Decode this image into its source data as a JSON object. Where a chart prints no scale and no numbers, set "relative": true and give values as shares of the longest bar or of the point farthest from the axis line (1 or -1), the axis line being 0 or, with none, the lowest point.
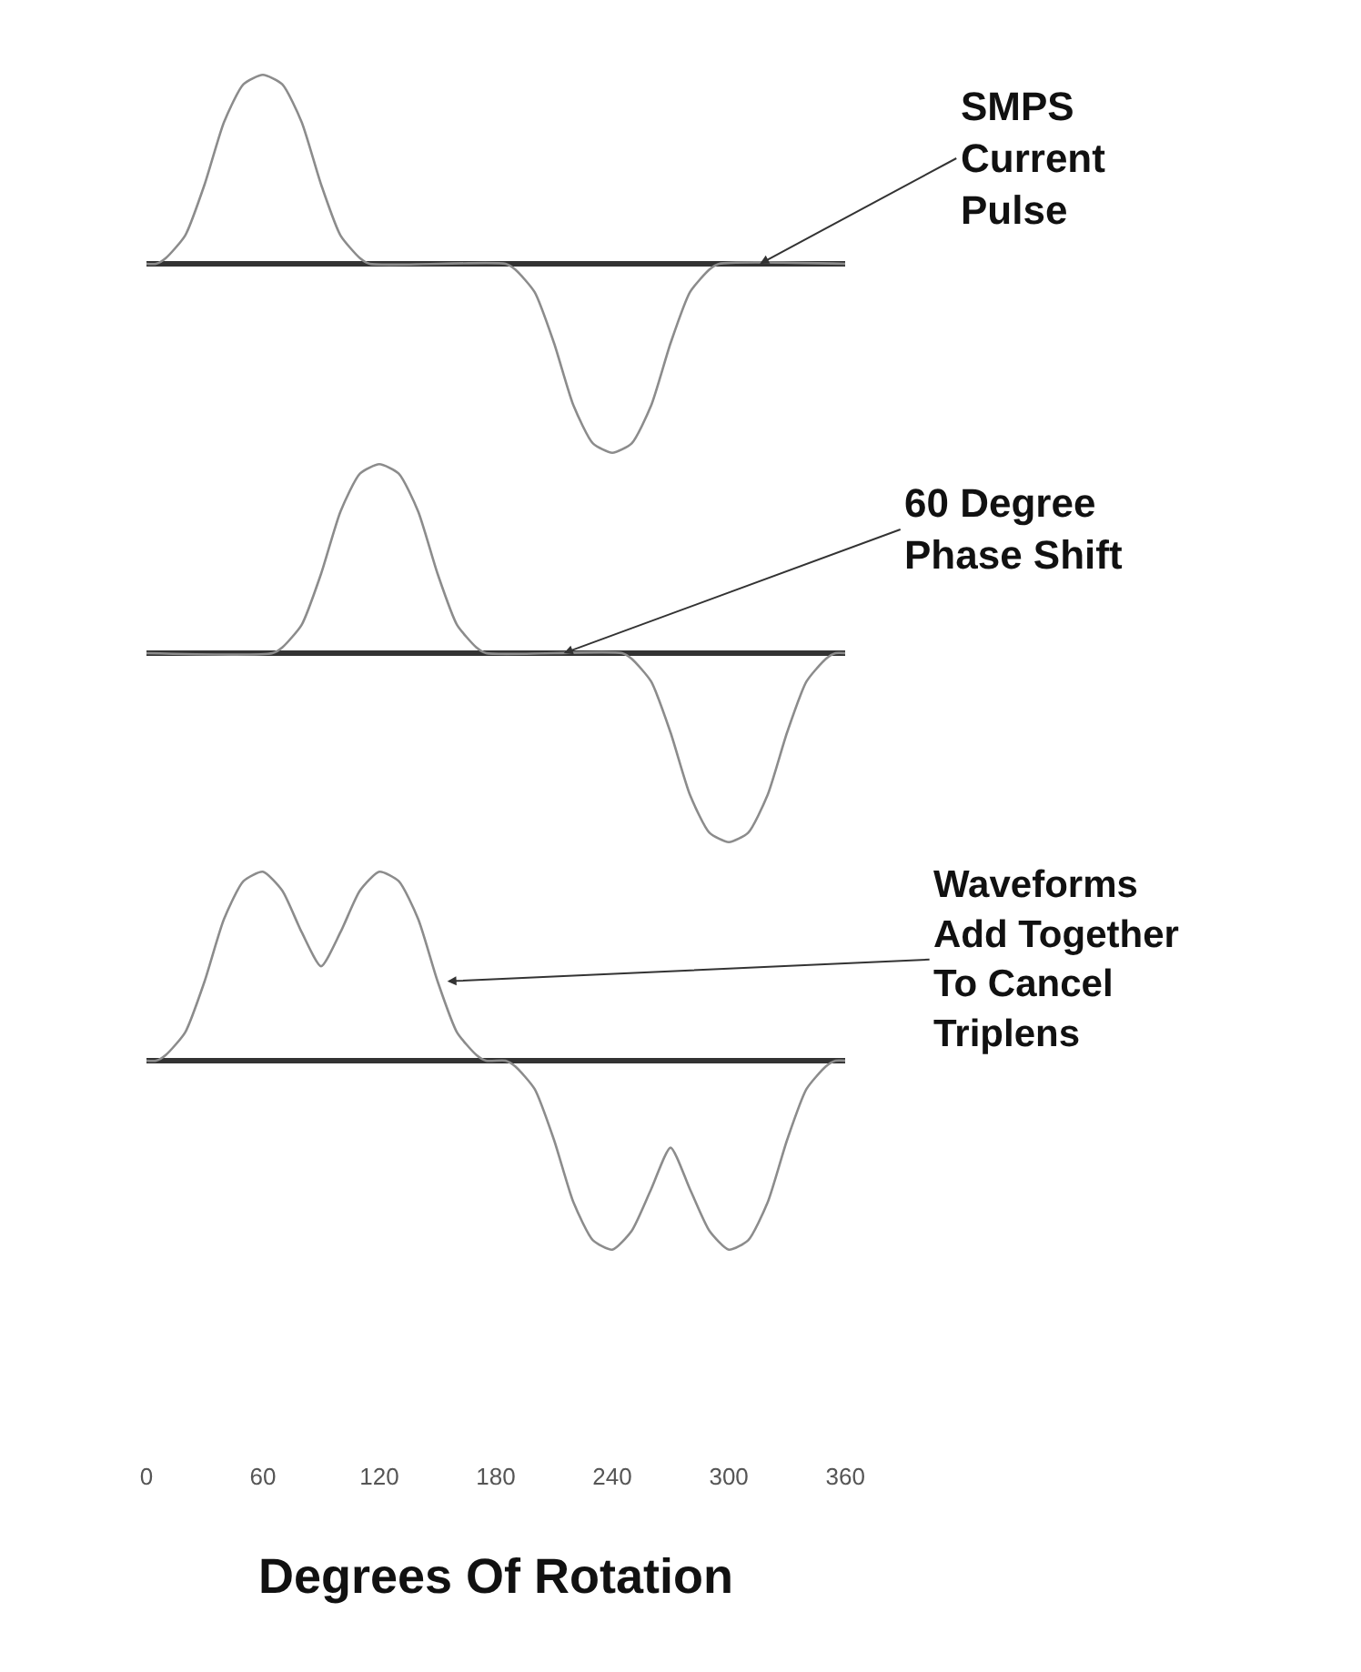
{
  "chart_data": [
    {
      "type": "line",
      "relative": true,
      "xlim": [
        0,
        360
      ],
      "tick_labels": false,
      "marker": "none",
      "line_style": "solid",
      "annotations": [
        {
          "text": "SMPS\nCurrent\nPulse",
          "x": 316,
          "y": 0
        }
      ],
      "series": [
        {
          "color": "#8c8c8c",
          "x": [
            0,
            5,
            10,
            20,
            30,
            40,
            50,
            60,
            70,
            80,
            90,
            100,
            110,
            115,
            185,
            190,
            200,
            210,
            220,
            230,
            240,
            250,
            260,
            270,
            280,
            290,
            295,
            360
          ],
          "values": [
            0,
            0,
            0.03,
            0.15,
            0.42,
            0.75,
            0.95,
            1,
            0.95,
            0.75,
            0.42,
            0.15,
            0.03,
            0,
            0,
            -0.03,
            -0.15,
            -0.42,
            -0.75,
            -0.95,
            -1,
            -0.95,
            -0.75,
            -0.42,
            -0.15,
            -0.03,
            0,
            0
          ]
        }
      ]
    },
    {
      "type": "line",
      "relative": true,
      "xlim": [
        0,
        360
      ],
      "tick_labels": false,
      "marker": "none",
      "line_style": "solid",
      "annotations": [
        {
          "text": "60 Degree\nPhase Shift",
          "x": 215,
          "y": 0
        }
      ],
      "series": [
        {
          "color": "#8c8c8c",
          "x": [
            0,
            65,
            70,
            80,
            90,
            100,
            110,
            120,
            130,
            140,
            150,
            160,
            170,
            175,
            245,
            250,
            260,
            270,
            280,
            290,
            300,
            310,
            320,
            330,
            340,
            350,
            355,
            360
          ],
          "values": [
            0,
            0,
            0.03,
            0.15,
            0.42,
            0.75,
            0.95,
            1,
            0.95,
            0.75,
            0.42,
            0.15,
            0.03,
            0,
            0,
            -0.03,
            -0.15,
            -0.42,
            -0.75,
            -0.95,
            -1,
            -0.95,
            -0.75,
            -0.42,
            -0.15,
            -0.03,
            0,
            0
          ]
        }
      ]
    },
    {
      "type": "line",
      "relative": true,
      "xlim": [
        0,
        360
      ],
      "xticks": [
        0,
        60,
        120,
        180,
        240,
        300,
        360
      ],
      "tick_labels": "x",
      "marker": "none",
      "line_style": "solid",
      "xlabel": "Degrees Of Rotation",
      "annotations": [
        {
          "text": "Waveforms\nAdd Together\nTo Cancel\nTriplens",
          "x": 155,
          "y": 0.42
        }
      ],
      "series": [
        {
          "color": "#8c8c8c",
          "x": [
            0,
            5,
            10,
            20,
            30,
            40,
            50,
            60,
            70,
            80,
            90,
            100,
            110,
            120,
            130,
            140,
            150,
            160,
            170,
            175,
            185,
            190,
            200,
            210,
            220,
            230,
            240,
            250,
            260,
            270,
            280,
            290,
            300,
            310,
            320,
            330,
            340,
            350,
            355,
            360
          ],
          "values": [
            0,
            0,
            0.03,
            0.15,
            0.42,
            0.75,
            0.95,
            1,
            0.9,
            0.68,
            0.5,
            0.68,
            0.9,
            1,
            0.95,
            0.75,
            0.42,
            0.15,
            0.03,
            0,
            0,
            -0.03,
            -0.15,
            -0.42,
            -0.75,
            -0.95,
            -1,
            -0.9,
            -0.68,
            -0.46,
            -0.68,
            -0.9,
            -1,
            -0.95,
            -0.75,
            -0.42,
            -0.15,
            -0.03,
            0,
            0
          ]
        }
      ]
    }
  ]
}
